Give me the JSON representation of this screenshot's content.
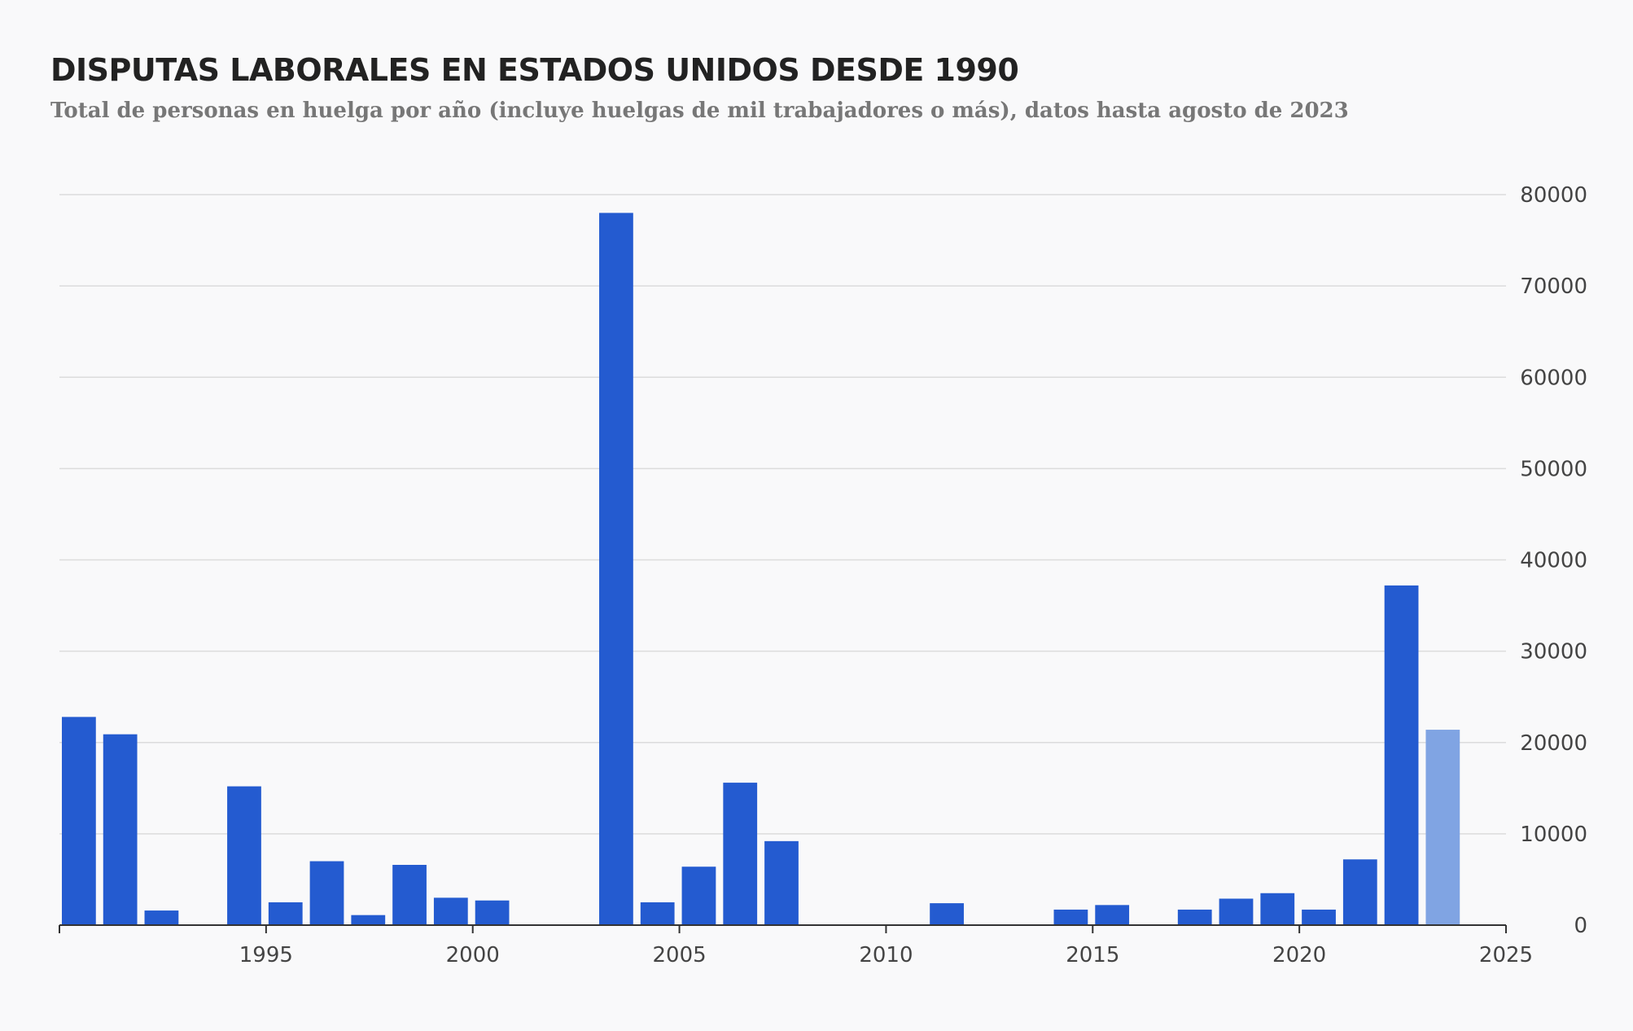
{
  "colors": {
    "bar": "#245bd0",
    "bar_partial": "#80a4e3",
    "grid": "#dcdcdc",
    "axis": "#333333",
    "background": "#f9f9fa"
  },
  "chart_data": {
    "type": "bar",
    "title": "DISPUTAS LABORALES EN ESTADOS UNIDOS DESDE 1990",
    "subtitle": "Total de personas en huelga por año (incluye huelgas de mil trabajadores o más), datos hasta agosto de 2023",
    "xlabel": "",
    "ylabel": "",
    "xlim": [
      1990,
      2025
    ],
    "ylim": [
      0,
      80000
    ],
    "x_ticks": [
      1995,
      2000,
      2005,
      2010,
      2015,
      2020,
      2025
    ],
    "y_ticks": [
      0,
      10000,
      20000,
      30000,
      40000,
      50000,
      60000,
      70000,
      80000
    ],
    "y_axis_position": "right",
    "grid": true,
    "legend": "none",
    "x": [
      1990,
      1991,
      1992,
      1993,
      1994,
      1995,
      1996,
      1997,
      1998,
      1999,
      2000,
      2001,
      2002,
      2003,
      2004,
      2005,
      2006,
      2007,
      2008,
      2009,
      2010,
      2011,
      2012,
      2013,
      2014,
      2015,
      2016,
      2017,
      2018,
      2019,
      2020,
      2021,
      2022,
      2023
    ],
    "values": [
      22800,
      20900,
      1600,
      0,
      15200,
      2500,
      7000,
      1100,
      6600,
      3000,
      2700,
      0,
      0,
      78000,
      2500,
      6400,
      15600,
      9200,
      0,
      0,
      0,
      2400,
      0,
      0,
      1700,
      2200,
      0,
      1700,
      2900,
      3500,
      1700,
      7200,
      37200,
      21400
    ],
    "partial_years": [
      2023
    ]
  }
}
